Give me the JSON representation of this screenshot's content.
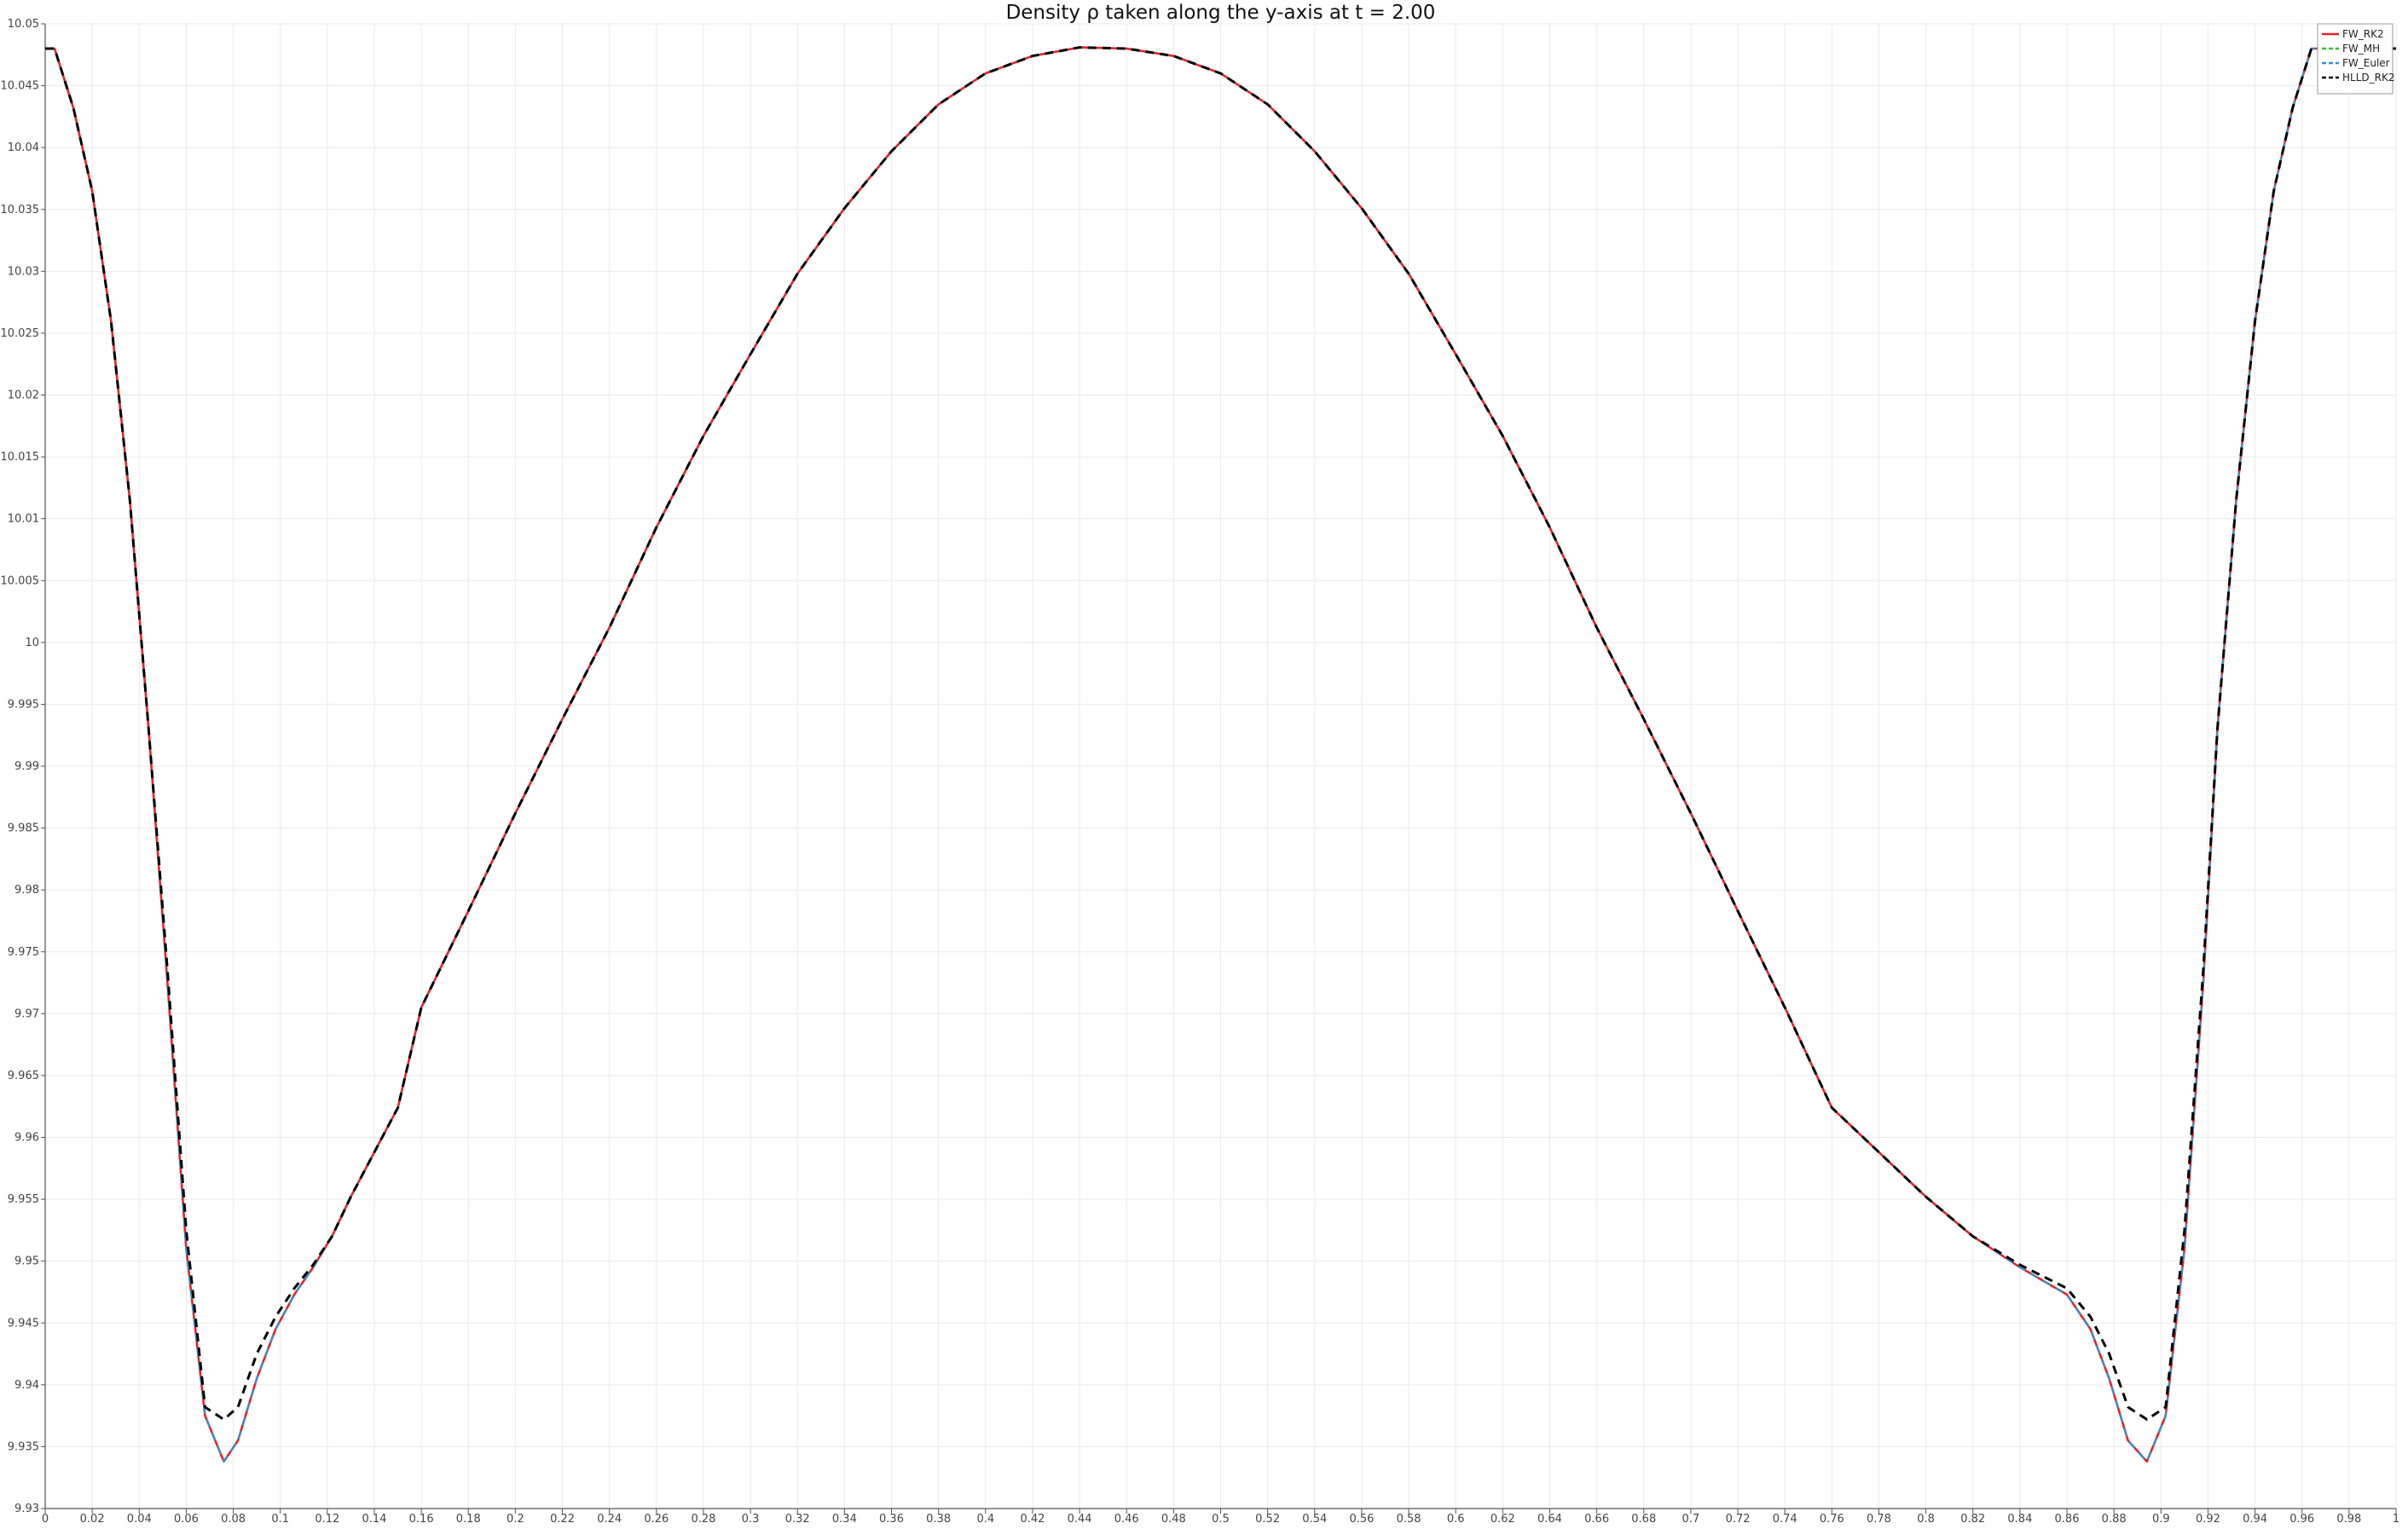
{
  "chart_data": {
    "type": "line",
    "title": "Density ρ taken along the y-axis at t = 2.00",
    "xlabel": "",
    "ylabel": "",
    "xlim": [
      0,
      1
    ],
    "ylim": [
      9.93,
      10.05
    ],
    "grid": true,
    "legend_position": "top-right",
    "x_ticks": [
      "0",
      "0.02",
      "0.04",
      "0.06",
      "0.08",
      "0.1",
      "0.12",
      "0.14",
      "0.16",
      "0.18",
      "0.2",
      "0.22",
      "0.24",
      "0.26",
      "0.28",
      "0.3",
      "0.32",
      "0.34",
      "0.36",
      "0.38",
      "0.4",
      "0.42",
      "0.44",
      "0.46",
      "0.48",
      "0.5",
      "0.52",
      "0.54",
      "0.56",
      "0.58",
      "0.6",
      "0.62",
      "0.64",
      "0.66",
      "0.68",
      "0.7",
      "0.72",
      "0.74",
      "0.76",
      "0.78",
      "0.8",
      "0.82",
      "0.84",
      "0.86",
      "0.88",
      "0.9",
      "0.92",
      "0.94",
      "0.96",
      "0.98",
      "1"
    ],
    "y_ticks": [
      "9.93",
      "9.935",
      "9.94",
      "9.945",
      "9.95",
      "9.955",
      "9.96",
      "9.965",
      "9.97",
      "9.975",
      "9.98",
      "9.985",
      "9.99",
      "9.995",
      "10",
      "10.005",
      "10.01",
      "10.015",
      "10.02",
      "10.025",
      "10.03",
      "10.035",
      "10.04",
      "10.045",
      "10.05"
    ],
    "series": [
      {
        "name": "FW_RK2",
        "color": "#e8202a",
        "dash": "solid",
        "x": [
          0,
          0.004,
          0.012,
          0.02,
          0.028,
          0.036,
          0.044,
          0.052,
          0.06,
          0.068,
          0.076,
          0.082,
          0.09,
          0.098,
          0.106,
          0.114,
          0.122,
          0.13,
          0.14,
          0.15,
          0.16,
          0.18,
          0.2,
          0.22,
          0.24,
          0.26,
          0.28,
          0.3,
          0.32,
          0.34,
          0.36,
          0.38,
          0.4,
          0.42,
          0.44,
          0.46,
          0.48,
          0.5,
          0.52,
          0.54,
          0.56,
          0.58,
          0.6,
          0.62,
          0.64,
          0.66,
          0.68,
          0.7,
          0.72,
          0.74,
          0.76,
          0.78,
          0.8,
          0.82,
          0.84,
          0.86,
          0.87,
          0.878,
          0.886,
          0.894,
          0.902,
          0.91,
          0.918,
          0.924,
          0.932,
          0.94,
          0.948,
          0.956,
          0.964,
          0.972,
          0.98,
          0.988,
          0.996,
          1
        ],
        "y": [
          10.048,
          10.048,
          10.0432,
          10.0365,
          10.026,
          10.0115,
          9.993,
          9.9725,
          9.951,
          9.9375,
          9.9338,
          9.9355,
          9.9405,
          9.9445,
          9.9473,
          9.9495,
          9.952,
          9.9552,
          9.9588,
          9.9624,
          9.9705,
          9.9783,
          9.9862,
          9.9938,
          10.0012,
          10.0093,
          10.0167,
          10.0233,
          10.0298,
          10.0351,
          10.0397,
          10.0435,
          10.046,
          10.0474,
          10.0481,
          10.048,
          10.0474,
          10.046,
          10.0435,
          10.0397,
          10.0351,
          10.0298,
          10.0233,
          10.0167,
          10.0093,
          10.0012,
          9.9938,
          9.9862,
          9.9783,
          9.9705,
          9.9624,
          9.9588,
          9.9552,
          9.952,
          9.9495,
          9.9473,
          9.9445,
          9.9405,
          9.9355,
          9.9338,
          9.9375,
          9.951,
          9.9725,
          9.993,
          10.0115,
          10.026,
          10.0365,
          10.0432,
          10.048,
          10.048,
          10.048,
          10.048,
          10.048,
          10.048
        ],
        "note": ""
      },
      {
        "name": "FW_MH",
        "color": "#2ec82e",
        "dash": "dashed",
        "x": [
          0,
          0.004,
          0.012,
          0.02,
          0.028,
          0.036,
          0.044,
          0.052,
          0.06,
          0.068,
          0.076,
          0.082,
          0.09,
          0.098,
          0.106,
          0.114,
          0.122,
          0.13,
          0.14,
          0.15,
          0.16,
          0.18,
          0.2,
          0.22,
          0.24,
          0.26,
          0.28,
          0.3,
          0.32,
          0.34,
          0.36,
          0.38,
          0.4,
          0.42,
          0.44,
          0.46,
          0.48,
          0.5,
          0.52,
          0.54,
          0.56,
          0.58,
          0.6,
          0.62,
          0.64,
          0.66,
          0.68,
          0.7,
          0.72,
          0.74,
          0.76,
          0.78,
          0.8,
          0.82,
          0.84,
          0.86,
          0.87,
          0.878,
          0.886,
          0.894,
          0.902,
          0.91,
          0.918,
          0.924,
          0.932,
          0.94,
          0.948,
          0.956,
          0.964,
          0.972,
          0.98,
          0.988,
          0.996,
          1
        ],
        "y": [
          10.048,
          10.048,
          10.0432,
          10.0365,
          10.026,
          10.0115,
          9.993,
          9.9725,
          9.951,
          9.9375,
          9.9338,
          9.9355,
          9.9405,
          9.9445,
          9.9473,
          9.9495,
          9.952,
          9.9552,
          9.9588,
          9.9624,
          9.9705,
          9.9783,
          9.9862,
          9.9938,
          10.0012,
          10.0093,
          10.0167,
          10.0233,
          10.0298,
          10.0351,
          10.0397,
          10.0435,
          10.046,
          10.0474,
          10.0481,
          10.048,
          10.0474,
          10.046,
          10.0435,
          10.0397,
          10.0351,
          10.0298,
          10.0233,
          10.0167,
          10.0093,
          10.0012,
          9.9938,
          9.9862,
          9.9783,
          9.9705,
          9.9624,
          9.9588,
          9.9552,
          9.952,
          9.9495,
          9.9473,
          9.9445,
          9.9405,
          9.9355,
          9.9338,
          9.9375,
          9.951,
          9.9725,
          9.993,
          10.0115,
          10.026,
          10.0365,
          10.0432,
          10.048,
          10.048,
          10.048,
          10.048,
          10.048,
          10.048
        ]
      },
      {
        "name": "FW_Euler",
        "color": "#2f8fd8",
        "dash": "dashed",
        "x": [
          0,
          0.004,
          0.012,
          0.02,
          0.028,
          0.036,
          0.044,
          0.052,
          0.06,
          0.068,
          0.076,
          0.082,
          0.09,
          0.098,
          0.106,
          0.114,
          0.122,
          0.13,
          0.14,
          0.15,
          0.16,
          0.18,
          0.2,
          0.22,
          0.24,
          0.26,
          0.28,
          0.3,
          0.32,
          0.34,
          0.36,
          0.38,
          0.4,
          0.42,
          0.44,
          0.46,
          0.48,
          0.5,
          0.52,
          0.54,
          0.56,
          0.58,
          0.6,
          0.62,
          0.64,
          0.66,
          0.68,
          0.7,
          0.72,
          0.74,
          0.76,
          0.78,
          0.8,
          0.82,
          0.84,
          0.86,
          0.87,
          0.878,
          0.886,
          0.894,
          0.902,
          0.91,
          0.918,
          0.924,
          0.932,
          0.94,
          0.948,
          0.956,
          0.964,
          0.972,
          0.98,
          0.988,
          0.996,
          1
        ],
        "y": [
          10.048,
          10.048,
          10.0432,
          10.0365,
          10.026,
          10.0115,
          9.993,
          9.9725,
          9.951,
          9.9375,
          9.9338,
          9.9355,
          9.9405,
          9.9445,
          9.9473,
          9.9495,
          9.952,
          9.9552,
          9.9588,
          9.9624,
          9.9705,
          9.9783,
          9.9862,
          9.9938,
          10.0012,
          10.0093,
          10.0167,
          10.0233,
          10.0298,
          10.0351,
          10.0397,
          10.0435,
          10.046,
          10.0474,
          10.0481,
          10.048,
          10.0474,
          10.046,
          10.0435,
          10.0397,
          10.0351,
          10.0298,
          10.0233,
          10.0167,
          10.0093,
          10.0012,
          9.9938,
          9.9862,
          9.9783,
          9.9705,
          9.9624,
          9.9588,
          9.9552,
          9.952,
          9.9495,
          9.9473,
          9.9445,
          9.9405,
          9.9355,
          9.9338,
          9.9375,
          9.951,
          9.9725,
          9.993,
          10.0115,
          10.026,
          10.0365,
          10.0432,
          10.048,
          10.048,
          10.048,
          10.048,
          10.048,
          10.048
        ]
      },
      {
        "name": "HLLD_RK2",
        "color": "#000000",
        "dash": "dashed",
        "x": [
          0,
          0.004,
          0.012,
          0.02,
          0.028,
          0.036,
          0.044,
          0.052,
          0.06,
          0.068,
          0.076,
          0.082,
          0.09,
          0.098,
          0.106,
          0.114,
          0.122,
          0.13,
          0.14,
          0.15,
          0.16,
          0.18,
          0.2,
          0.22,
          0.24,
          0.26,
          0.28,
          0.3,
          0.32,
          0.34,
          0.36,
          0.38,
          0.4,
          0.42,
          0.44,
          0.46,
          0.48,
          0.5,
          0.52,
          0.54,
          0.56,
          0.58,
          0.6,
          0.62,
          0.64,
          0.66,
          0.68,
          0.7,
          0.72,
          0.74,
          0.76,
          0.78,
          0.8,
          0.82,
          0.84,
          0.86,
          0.87,
          0.878,
          0.886,
          0.894,
          0.902,
          0.91,
          0.918,
          0.924,
          0.932,
          0.94,
          0.948,
          0.956,
          0.964,
          0.972,
          0.98,
          0.988,
          0.996,
          1
        ],
        "y": [
          10.048,
          10.048,
          10.0432,
          10.0365,
          10.026,
          10.0115,
          9.993,
          9.9735,
          9.9525,
          9.9382,
          9.9372,
          9.9382,
          9.9425,
          9.9455,
          9.9478,
          9.9497,
          9.952,
          9.9552,
          9.9588,
          9.9624,
          9.9705,
          9.9783,
          9.9862,
          9.9938,
          10.0012,
          10.0093,
          10.0167,
          10.0233,
          10.0298,
          10.0351,
          10.0397,
          10.0435,
          10.046,
          10.0474,
          10.0481,
          10.048,
          10.0474,
          10.046,
          10.0435,
          10.0397,
          10.0351,
          10.0298,
          10.0233,
          10.0167,
          10.0093,
          10.0012,
          9.9938,
          9.9862,
          9.9783,
          9.9705,
          9.9624,
          9.9588,
          9.9552,
          9.952,
          9.9497,
          9.9478,
          9.9455,
          9.9425,
          9.9382,
          9.9372,
          9.9382,
          9.9525,
          9.9735,
          9.993,
          10.0115,
          10.026,
          10.0365,
          10.0432,
          10.048,
          10.048,
          10.048,
          10.048,
          10.048,
          10.048
        ]
      }
    ]
  }
}
